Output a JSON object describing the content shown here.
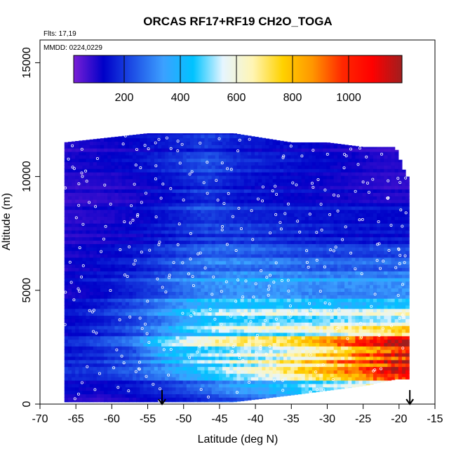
{
  "chart_data": {
    "type": "heatmap",
    "title": "ORCAS RF17+RF19 CH2O_TOGA",
    "flights_note": "Flts: 17,19",
    "date_note": "MMDD: 0224,0229",
    "xlabel": "Latitude (deg N)",
    "ylabel": "Altitude (m)",
    "xlim": [
      -70,
      -15
    ],
    "ylim": [
      0,
      16000
    ],
    "xticks": [
      -70,
      -65,
      -60,
      -55,
      -50,
      -45,
      -40,
      -35,
      -30,
      -25,
      -20,
      -15
    ],
    "xtick_labels": [
      "-70",
      "-65",
      "-60",
      "-55",
      "-50",
      "-45",
      "-40",
      "-35",
      "-30",
      "-25",
      "-20",
      "-15"
    ],
    "yticks": [
      0,
      5000,
      10000,
      15000
    ],
    "ytick_labels": [
      "0",
      "5000",
      "10000",
      "15000"
    ],
    "colorbar": {
      "range": [
        20,
        1190
      ],
      "ticks": [
        200,
        400,
        600,
        800,
        1000
      ],
      "tick_labels": [
        "200",
        "400",
        "600",
        "800",
        "1000"
      ],
      "divider_values": [
        200,
        400,
        600,
        800,
        1000
      ],
      "colors": [
        "#7a1fd6",
        "#0000c8",
        "#1e50e6",
        "#3ca0ff",
        "#00c3ff",
        "#e6f5ff",
        "#fff5b4",
        "#ffd200",
        "#ff9600",
        "#ff2800",
        "#ff0000",
        "#a01e1e"
      ]
    },
    "arrows_latitude": [
      -53,
      -18.5
    ],
    "profiles": [
      {
        "lat": -66.6,
        "top": 11500,
        "bottom": 100
      },
      {
        "lat": -55.0,
        "top": 11900,
        "bottom": 100
      },
      {
        "lat": -43.0,
        "top": 11900,
        "bottom": 100
      },
      {
        "lat": -35.0,
        "top": 11500,
        "bottom": 400
      },
      {
        "lat": -30.0,
        "top": 11500,
        "bottom": 600
      },
      {
        "lat": -25.0,
        "top": 11300,
        "bottom": 800
      },
      {
        "lat": -20.5,
        "top": 11300,
        "bottom": 1100
      },
      {
        "lat": -19.0,
        "top": 10000,
        "bottom": 1100
      }
    ],
    "value_field": {
      "altitude_levels": [
        500,
        1500,
        2500,
        3500,
        4500,
        5500,
        6500,
        7500,
        8500,
        9500,
        10500,
        11500
      ],
      "latitudes": [
        -67,
        -62,
        -57,
        -52,
        -47,
        -42,
        -37,
        -32,
        -27,
        -22,
        -19
      ],
      "values": [
        [
          110,
          90,
          120,
          150,
          200,
          260,
          300,
          380,
          430,
          480,
          470
        ],
        [
          170,
          180,
          230,
          300,
          420,
          520,
          600,
          700,
          800,
          980,
          1050
        ],
        [
          150,
          200,
          260,
          480,
          560,
          600,
          620,
          720,
          850,
          1050,
          1150
        ],
        [
          130,
          170,
          230,
          330,
          480,
          540,
          560,
          560,
          600,
          620,
          640
        ],
        [
          120,
          150,
          220,
          300,
          390,
          420,
          420,
          400,
          380,
          400,
          420
        ],
        [
          110,
          140,
          170,
          240,
          300,
          320,
          320,
          300,
          300,
          300,
          300
        ],
        [
          100,
          120,
          150,
          200,
          250,
          260,
          240,
          220,
          220,
          220,
          220
        ],
        [
          100,
          110,
          130,
          170,
          210,
          210,
          190,
          170,
          150,
          150,
          150
        ],
        [
          90,
          100,
          120,
          160,
          220,
          180,
          160,
          150,
          150,
          140,
          140
        ],
        [
          100,
          100,
          120,
          160,
          220,
          170,
          150,
          140,
          120,
          100,
          100
        ],
        [
          100,
          110,
          130,
          170,
          230,
          170,
          150,
          130,
          110,
          90,
          90
        ],
        [
          100,
          110,
          130,
          160,
          200,
          160,
          140,
          130,
          110,
          90,
          90
        ]
      ]
    }
  }
}
